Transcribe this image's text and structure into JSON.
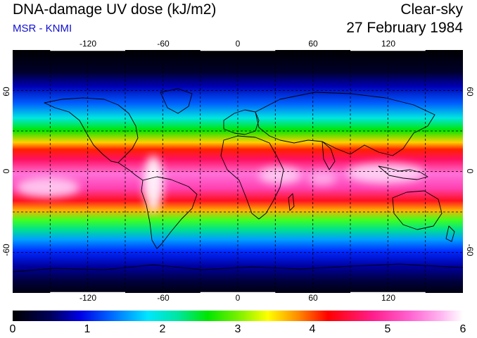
{
  "header": {
    "title": "DNA-damage UV dose (kJ/m2)",
    "subtitle": "MSR - KNMI",
    "sky_condition": "Clear-sky",
    "date": "27 February 1984"
  },
  "map": {
    "projection": "lat-lon",
    "lon_range": [
      -180,
      180
    ],
    "lat_range": [
      -90,
      90
    ],
    "lon_ticks": [
      {
        "value": -120,
        "label": "-120"
      },
      {
        "value": -60,
        "label": "-60"
      },
      {
        "value": 0,
        "label": "0"
      },
      {
        "value": 60,
        "label": "60"
      },
      {
        "value": 120,
        "label": "120"
      }
    ],
    "lat_ticks": [
      {
        "value": 60,
        "label": "60"
      },
      {
        "value": 0,
        "label": "0"
      },
      {
        "value": -60,
        "label": "-60"
      }
    ],
    "gridline_style": "dashed",
    "land_outline_color": "#000000"
  },
  "colorbar": {
    "min": 0,
    "max": 6,
    "labels": [
      "0",
      "1",
      "2",
      "3",
      "4",
      "5",
      "6"
    ],
    "stops": [
      {
        "value": 0.0,
        "color": "#000000"
      },
      {
        "value": 0.5,
        "color": "#00005a"
      },
      {
        "value": 0.9,
        "color": "#0000e6"
      },
      {
        "value": 1.3,
        "color": "#0064ff"
      },
      {
        "value": 1.8,
        "color": "#00e6ff"
      },
      {
        "value": 2.2,
        "color": "#00e6a0"
      },
      {
        "value": 2.6,
        "color": "#00e600"
      },
      {
        "value": 3.0,
        "color": "#78f000"
      },
      {
        "value": 3.4,
        "color": "#ffff00"
      },
      {
        "value": 3.8,
        "color": "#ff8c00"
      },
      {
        "value": 4.2,
        "color": "#ff0000"
      },
      {
        "value": 4.8,
        "color": "#ff1e8c"
      },
      {
        "value": 5.3,
        "color": "#ff64d2"
      },
      {
        "value": 5.7,
        "color": "#ffb4f0"
      },
      {
        "value": 6.0,
        "color": "#ffffff"
      }
    ]
  }
}
